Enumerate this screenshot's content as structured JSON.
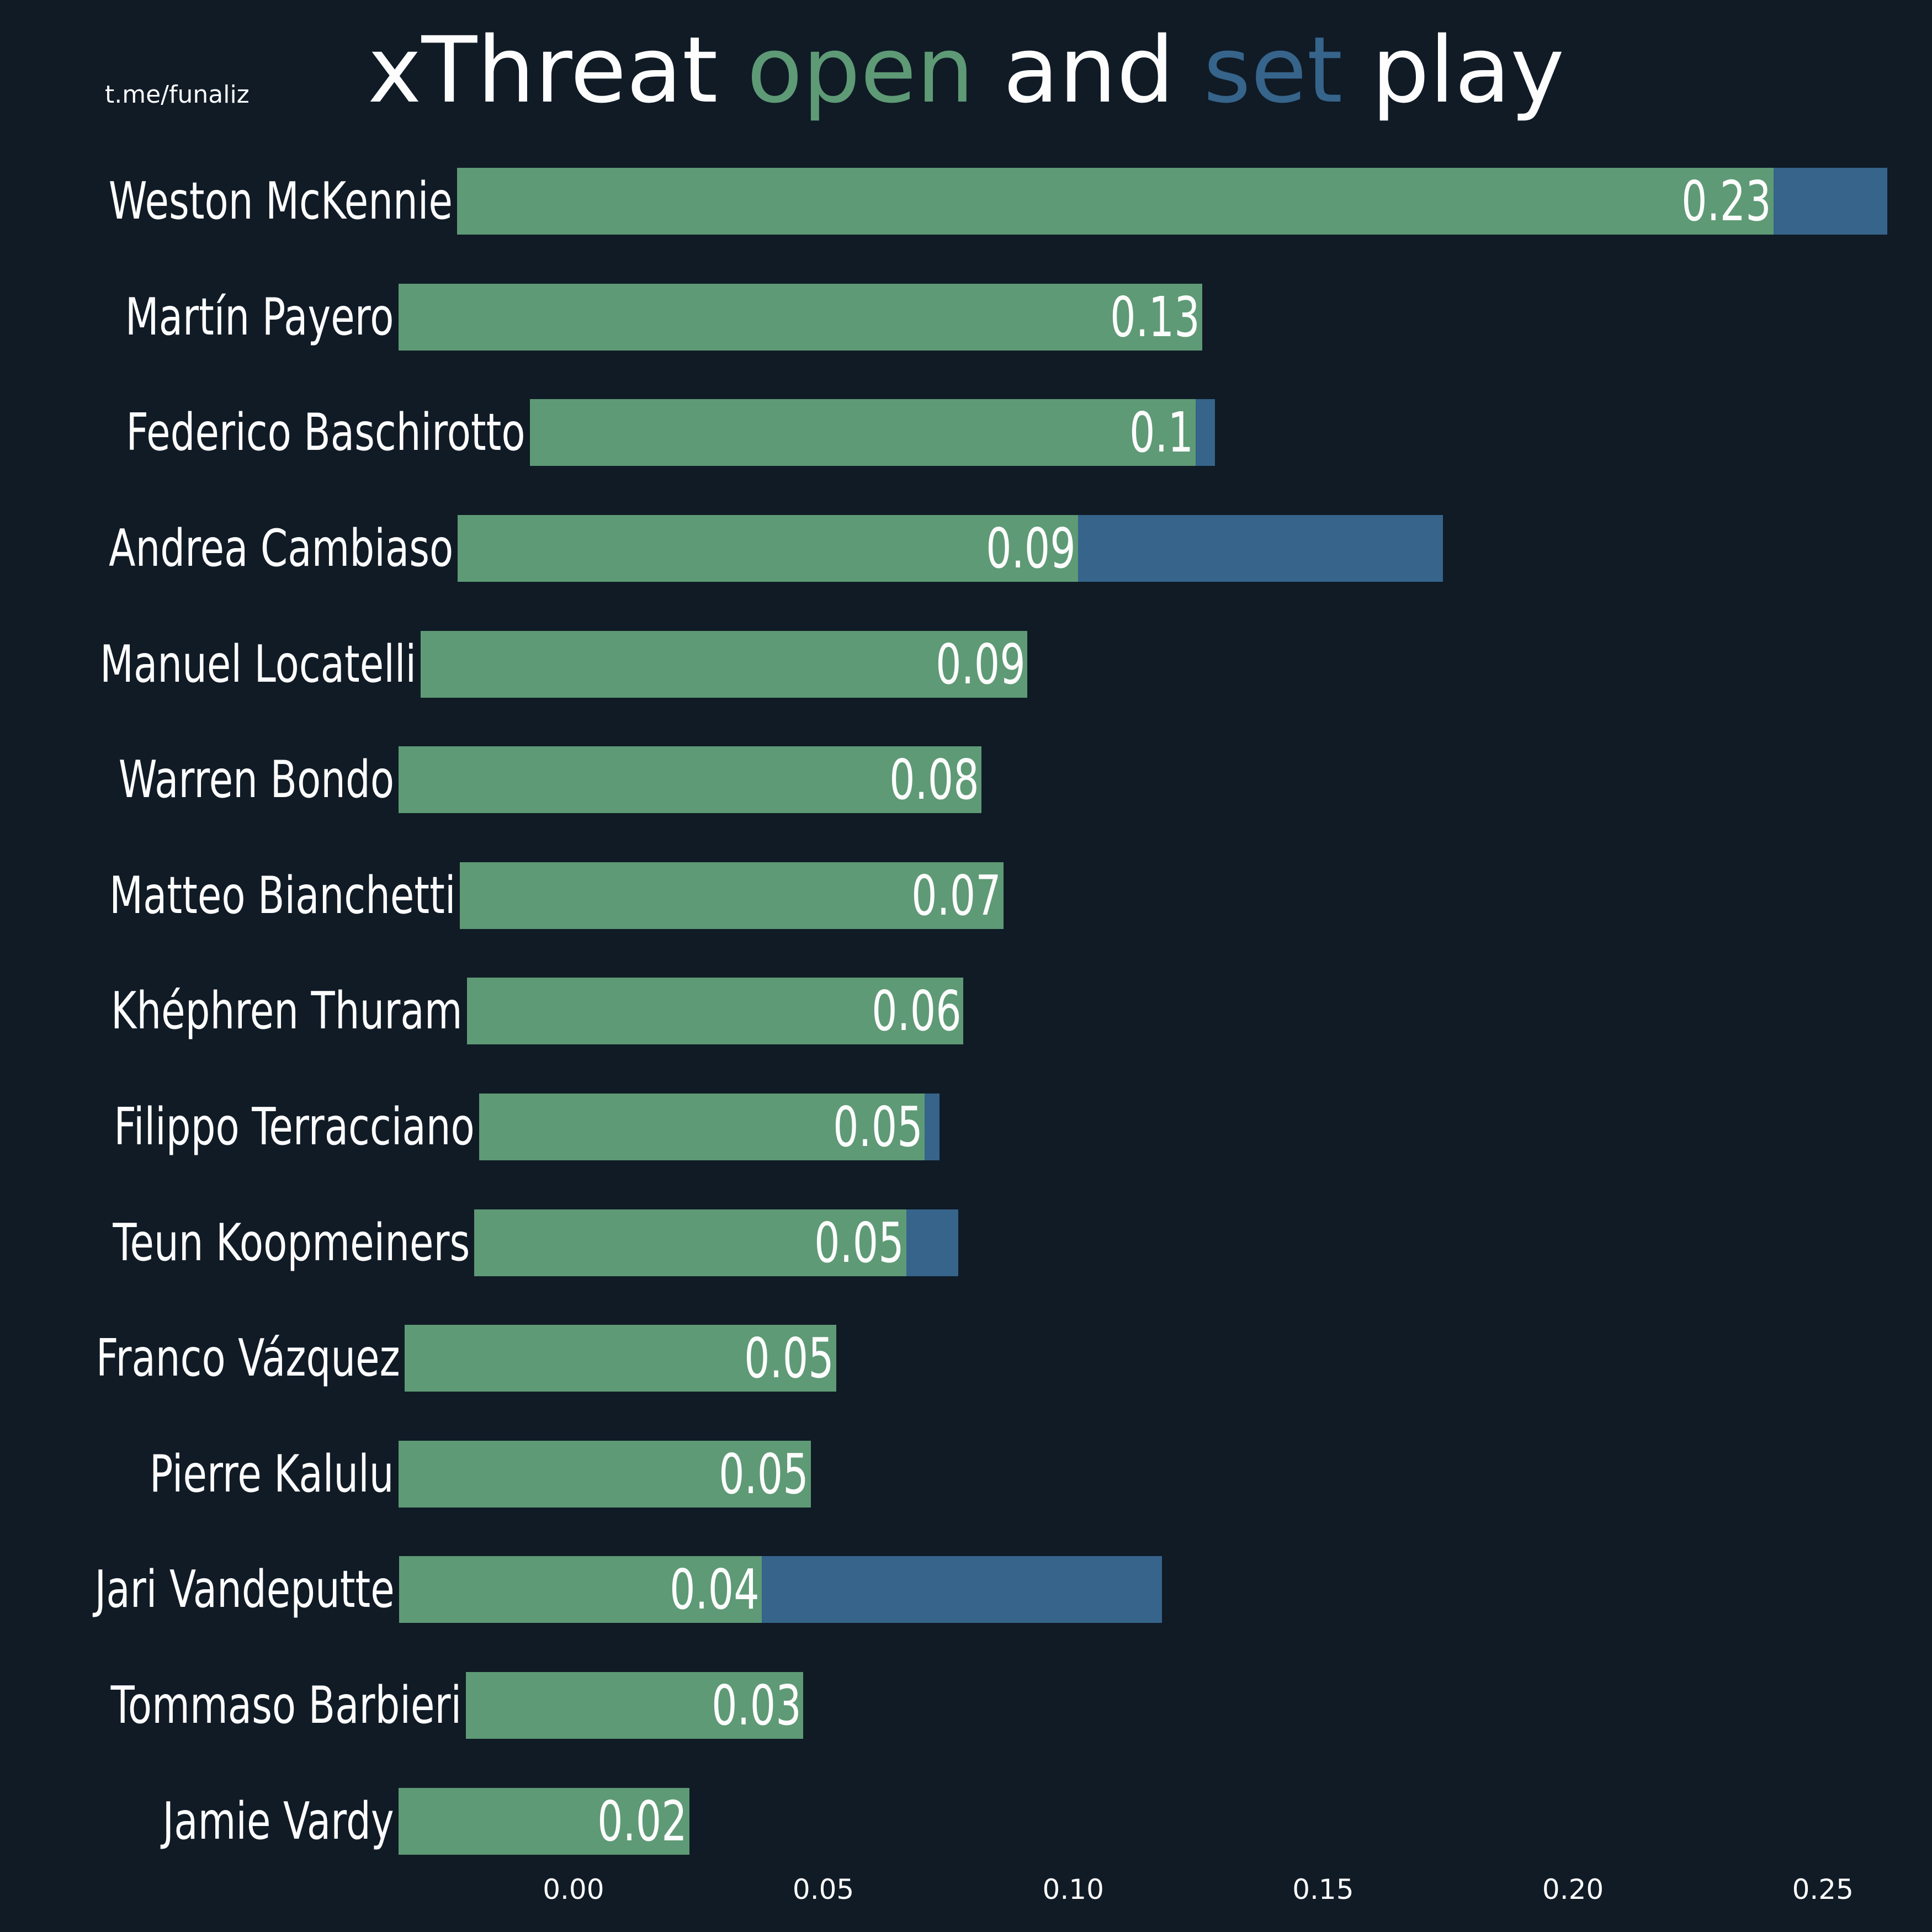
{
  "watermark": "t.me/funaliz",
  "title": {
    "full_text": "xThreat open and set play",
    "parts": [
      {
        "text": "xThreat ",
        "role": "default"
      },
      {
        "text": "open",
        "role": "open"
      },
      {
        "text": " and ",
        "role": "default"
      },
      {
        "text": "set",
        "role": "set"
      },
      {
        "text": " play",
        "role": "default"
      }
    ]
  },
  "colors": {
    "background": "#101b26",
    "open": "#5e9a75",
    "set": "#36648b",
    "text": "#fdfdfd"
  },
  "chart_data": {
    "type": "bar",
    "orientation": "horizontal",
    "stacked": true,
    "title": "xThreat open and set play",
    "legend": "inline in title (open = green, set = blue)",
    "grid": false,
    "xlim": [
      -0.035,
      0.264
    ],
    "xticks": [
      {
        "label": "0.00",
        "value": 0.0
      },
      {
        "label": "0.05",
        "value": 0.05
      },
      {
        "label": "0.10",
        "value": 0.1
      },
      {
        "label": "0.15",
        "value": 0.15
      },
      {
        "label": "0.20",
        "value": 0.2
      },
      {
        "label": "0.25",
        "value": 0.25
      }
    ],
    "series_names": [
      "open play xThreat",
      "set play xThreat"
    ],
    "players": [
      {
        "name": "Weston McKennie",
        "label": "0.23",
        "open": 0.2284,
        "set": 0.0228
      },
      {
        "name": "Martín Payero",
        "label": "0.13",
        "open": 0.1258,
        "set": 0
      },
      {
        "name": "Federico Baschirotto",
        "label": "0.1",
        "open": 0.0982,
        "set": 0.0039
      },
      {
        "name": "Andrea Cambiaso",
        "label": "0.09",
        "open": 0.0891,
        "set": 0.073
      },
      {
        "name": "Manuel Locatelli",
        "label": "0.09",
        "open": 0.0864,
        "set": 0
      },
      {
        "name": "Warren Bondo",
        "label": "0.08",
        "open": 0.0816,
        "set": 0
      },
      {
        "name": "Matteo Bianchetti",
        "label": "0.07",
        "open": 0.0737,
        "set": 0
      },
      {
        "name": "Khéphren Thuram",
        "label": "0.06",
        "open": 0.0644,
        "set": 0
      },
      {
        "name": "Filippo Terracciano",
        "label": "0.05",
        "open": 0.0542,
        "set": 0.0029
      },
      {
        "name": "Teun Koopmeiners",
        "label": "0.05",
        "open": 0.0514,
        "set": 0.0104
      },
      {
        "name": "Franco Vázquez",
        "label": "0.05",
        "open": 0.0514,
        "set": 0
      },
      {
        "name": "Pierre Kalulu",
        "label": "0.05",
        "open": 0.0475,
        "set": 0
      },
      {
        "name": "Jari Vandeputte",
        "label": "0.04",
        "open": 0.0376,
        "set": 0.0801
      },
      {
        "name": "Tommaso Barbieri",
        "label": "0.03",
        "open": 0.0325,
        "set": 0
      },
      {
        "name": "Jamie Vardy",
        "label": "0.02",
        "open": 0.0232,
        "set": 0
      }
    ]
  }
}
